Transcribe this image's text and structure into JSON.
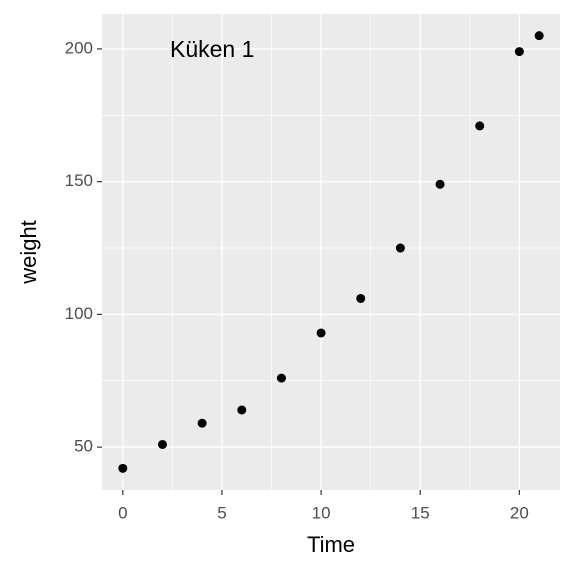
{
  "chart_data": {
    "type": "scatter",
    "x_label": "Time",
    "y_label": "weight",
    "annotation": "Küken 1",
    "x": [
      0,
      2,
      4,
      6,
      8,
      10,
      12,
      14,
      16,
      18,
      20,
      21
    ],
    "values": [
      42,
      51,
      59,
      64,
      76,
      93,
      106,
      125,
      149,
      171,
      199,
      205
    ],
    "color": "#000000",
    "xlim": [
      -1.05,
      22.05
    ],
    "xticks": [
      0,
      5,
      10,
      15,
      20
    ],
    "ylim": [
      33.85,
      213.15
    ],
    "yticks": [
      50,
      100,
      150,
      200
    ],
    "grid": true
  }
}
